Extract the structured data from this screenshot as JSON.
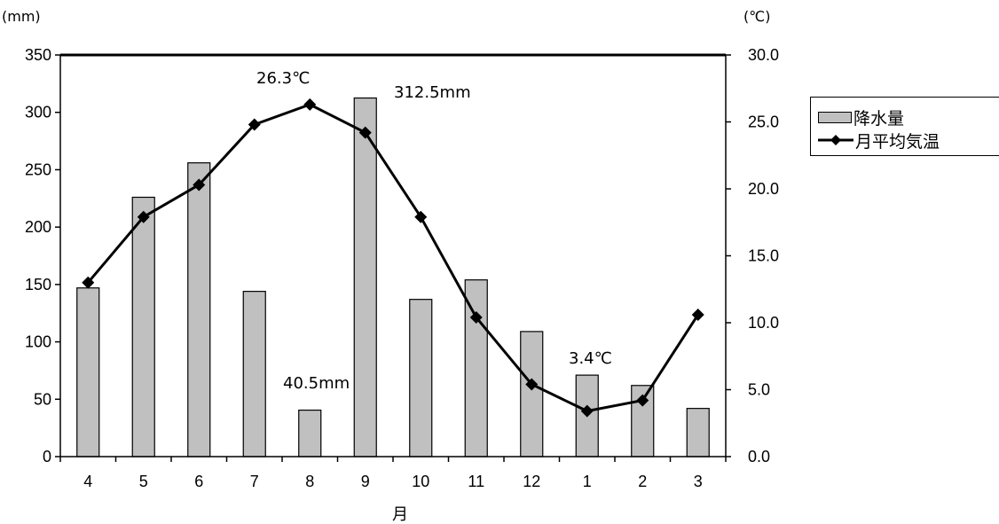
{
  "chart_data": {
    "type": "bar+line",
    "xlabel": "月",
    "categories": [
      "4",
      "5",
      "6",
      "7",
      "8",
      "9",
      "10",
      "11",
      "12",
      "1",
      "2",
      "3"
    ],
    "series": [
      {
        "name": "降水量",
        "kind": "bar",
        "axis": "left",
        "values": [
          147,
          226,
          256,
          144,
          40.5,
          312.5,
          137,
          154,
          109,
          71,
          62,
          42
        ]
      },
      {
        "name": "月平均気温",
        "kind": "line",
        "axis": "right",
        "values": [
          13.0,
          17.9,
          20.3,
          24.8,
          26.3,
          24.2,
          17.9,
          10.4,
          5.4,
          3.4,
          4.2,
          10.6
        ]
      }
    ],
    "y_left": {
      "unit": "(mm)",
      "lim": [
        0,
        350
      ],
      "ticks": [
        "0",
        "50",
        "100",
        "150",
        "200",
        "250",
        "300",
        "350"
      ]
    },
    "y_right": {
      "unit": "(℃)",
      "lim": [
        0,
        30
      ],
      "ticks": [
        "0.0",
        "5.0",
        "10.0",
        "15.0",
        "20.0",
        "25.0",
        "30.0"
      ]
    },
    "annotations": [
      "26.3℃",
      "312.5mm",
      "40.5mm",
      "3.4℃"
    ],
    "legend_position": "right",
    "colors": {
      "bar": "#c0c0c0",
      "line": "#000000"
    }
  }
}
